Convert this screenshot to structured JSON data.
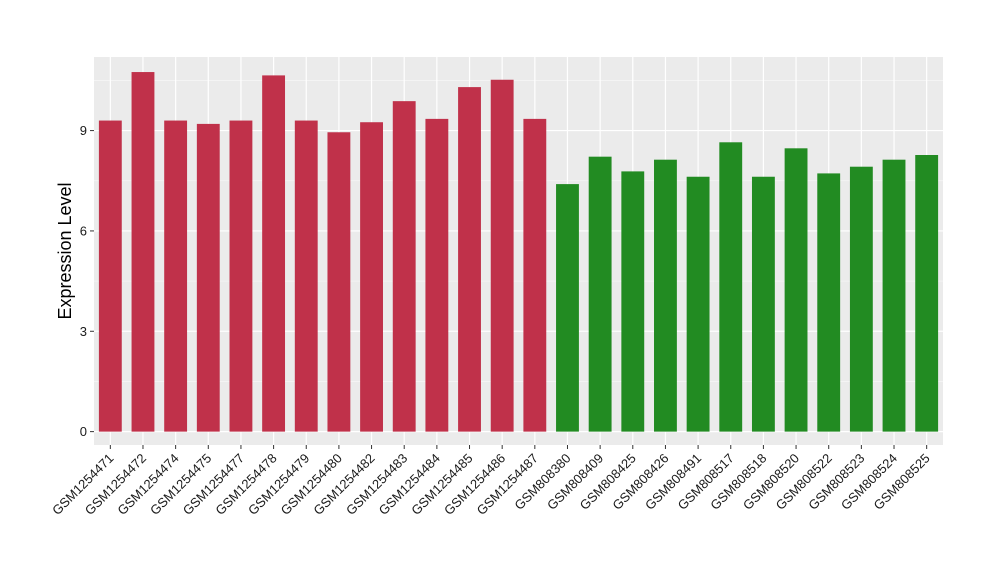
{
  "chart_data": {
    "type": "bar",
    "title": "",
    "xlabel": "",
    "ylabel": "Expression Level",
    "ylim": [
      -0.4,
      11.2
    ],
    "yticks": [
      0,
      3,
      6,
      9
    ],
    "grid": true,
    "legend": "none",
    "background": "#EBEBEB",
    "categories": [
      "GSM1254471",
      "GSM1254472",
      "GSM1254474",
      "GSM1254475",
      "GSM1254477",
      "GSM1254478",
      "GSM1254479",
      "GSM1254480",
      "GSM1254482",
      "GSM1254483",
      "GSM1254484",
      "GSM1254485",
      "GSM1254486",
      "GSM1254487",
      "GSM808380",
      "GSM808409",
      "GSM808425",
      "GSM808426",
      "GSM808491",
      "GSM808517",
      "GSM808518",
      "GSM808520",
      "GSM808522",
      "GSM808523",
      "GSM808524",
      "GSM808525"
    ],
    "values": [
      9.3,
      10.75,
      9.3,
      9.2,
      9.3,
      10.65,
      9.3,
      8.95,
      9.25,
      9.88,
      9.35,
      10.3,
      10.52,
      9.35,
      7.4,
      8.22,
      7.78,
      8.13,
      7.62,
      8.65,
      7.62,
      8.47,
      7.72,
      7.92,
      8.13,
      8.27
    ],
    "colors": [
      "#C0314A",
      "#C0314A",
      "#C0314A",
      "#C0314A",
      "#C0314A",
      "#C0314A",
      "#C0314A",
      "#C0314A",
      "#C0314A",
      "#C0314A",
      "#C0314A",
      "#C0314A",
      "#C0314A",
      "#C0314A",
      "#228B22",
      "#228B22",
      "#228B22",
      "#228B22",
      "#228B22",
      "#228B22",
      "#228B22",
      "#228B22",
      "#228B22",
      "#228B22",
      "#228B22",
      "#228B22"
    ]
  }
}
